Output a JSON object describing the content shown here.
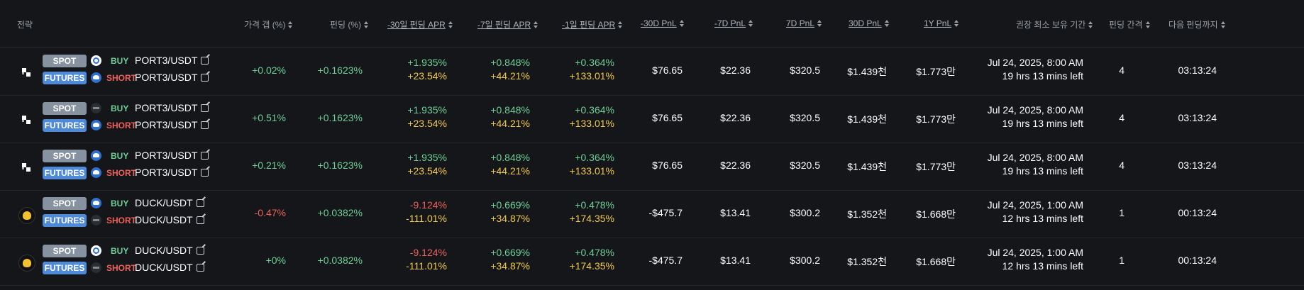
{
  "headers": {
    "strategy": "전략",
    "price_gap": "가격 갭 (%)",
    "funding": "펀딩 (%)",
    "apr30": "-30일 펀딩 APR",
    "apr7": "-7일 펀딩 APR",
    "apr1": "-1일 펀딩 APR",
    "pnl30_neg": "-30D PnL",
    "pnl7_neg": "-7D PnL",
    "pnl7": "7D PnL",
    "pnl30": "30D PnL",
    "pnl1y": "1Y PnL",
    "hold": "권장 최소 보유 기간",
    "interval": "펀딩 간격",
    "next": "다음 펀딩까지"
  },
  "labels": {
    "spot": "SPOT",
    "futures": "FUTURES",
    "buy": "BUY",
    "short": "SHORT"
  },
  "rows": [
    {
      "spot_pair": "PORT3/USDT",
      "fut_pair": "PORT3/USDT",
      "gap": "+0.02%",
      "funding": "+0.1623%",
      "apr30_a": "+1.935%",
      "apr30_b": "+23.54%",
      "apr7_a": "+0.848%",
      "apr7_b": "+44.21%",
      "apr1_a": "+0.364%",
      "apr1_b": "+133.01%",
      "pnl30n": "$76.65",
      "pnl7n": "$22.36",
      "pnl7": "$320.5",
      "pnl30": "$1.439천",
      "pnl1y": "$1.773만",
      "hold_date": "Jul 24, 2025, 8:00 AM",
      "hold_left": "19 hrs 13 mins left",
      "interval": "4",
      "next": "03:13:24"
    },
    {
      "spot_pair": "PORT3/USDT",
      "fut_pair": "PORT3/USDT",
      "gap": "+0.51%",
      "funding": "+0.1623%",
      "apr30_a": "+1.935%",
      "apr30_b": "+23.54%",
      "apr7_a": "+0.848%",
      "apr7_b": "+44.21%",
      "apr1_a": "+0.364%",
      "apr1_b": "+133.01%",
      "pnl30n": "$76.65",
      "pnl7n": "$22.36",
      "pnl7": "$320.5",
      "pnl30": "$1.439천",
      "pnl1y": "$1.773만",
      "hold_date": "Jul 24, 2025, 8:00 AM",
      "hold_left": "19 hrs 13 mins left",
      "interval": "4",
      "next": "03:13:24"
    },
    {
      "spot_pair": "PORT3/USDT",
      "fut_pair": "PORT3/USDT",
      "gap": "+0.21%",
      "funding": "+0.1623%",
      "apr30_a": "+1.935%",
      "apr30_b": "+23.54%",
      "apr7_a": "+0.848%",
      "apr7_b": "+44.21%",
      "apr1_a": "+0.364%",
      "apr1_b": "+133.01%",
      "pnl30n": "$76.65",
      "pnl7n": "$22.36",
      "pnl7": "$320.5",
      "pnl30": "$1.439천",
      "pnl1y": "$1.773만",
      "hold_date": "Jul 24, 2025, 8:00 AM",
      "hold_left": "19 hrs 13 mins left",
      "interval": "4",
      "next": "03:13:24"
    },
    {
      "spot_pair": "DUCK/USDT",
      "fut_pair": "DUCK/USDT",
      "gap": "-0.47%",
      "funding": "+0.0382%",
      "apr30_a": "-9.124%",
      "apr30_b": "-111.01%",
      "apr7_a": "+0.669%",
      "apr7_b": "+34.87%",
      "apr1_a": "+0.478%",
      "apr1_b": "+174.35%",
      "pnl30n": "-$475.7",
      "pnl7n": "$13.41",
      "pnl7": "$300.2",
      "pnl30": "$1.352천",
      "pnl1y": "$1.668만",
      "hold_date": "Jul 24, 2025, 1:00 AM",
      "hold_left": "12 hrs 13 mins left",
      "interval": "1",
      "next": "00:13:24"
    },
    {
      "spot_pair": "DUCK/USDT",
      "fut_pair": "DUCK/USDT",
      "gap": "+0%",
      "funding": "+0.0382%",
      "apr30_a": "-9.124%",
      "apr30_b": "-111.01%",
      "apr7_a": "+0.669%",
      "apr7_b": "+34.87%",
      "apr1_a": "+0.478%",
      "apr1_b": "+174.35%",
      "pnl30n": "-$475.7",
      "pnl7n": "$13.41",
      "pnl7": "$300.2",
      "pnl30": "$1.352천",
      "pnl1y": "$1.668만",
      "hold_date": "Jul 24, 2025, 1:00 AM",
      "hold_left": "12 hrs 13 mins left",
      "interval": "1",
      "next": "00:13:24"
    }
  ],
  "colors": {
    "positive": "#6fcf97",
    "negative": "#f0605a",
    "secondary": "#f2c94c",
    "spot_badge": "#8792a0",
    "futures_badge": "#4f8ad8"
  }
}
